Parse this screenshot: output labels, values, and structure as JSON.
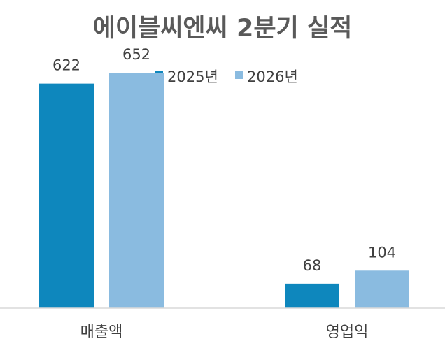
{
  "chart_data": {
    "type": "bar",
    "title": "에이블씨엔씨  2분기 실적",
    "categories": [
      "매출액",
      "영업익"
    ],
    "series": [
      {
        "name": "2025년",
        "values": [
          622,
          68
        ],
        "color": "#0e87bd"
      },
      {
        "name": "2026년",
        "values": [
          652,
          104
        ],
        "color": "#8abbe0"
      }
    ],
    "ylim": [
      0,
      720
    ],
    "grid": false,
    "legend_position": "top-center",
    "data_labels": true
  },
  "colors": {
    "baseline": "#d9d9d9",
    "text": "#404040",
    "title": "#595959"
  }
}
